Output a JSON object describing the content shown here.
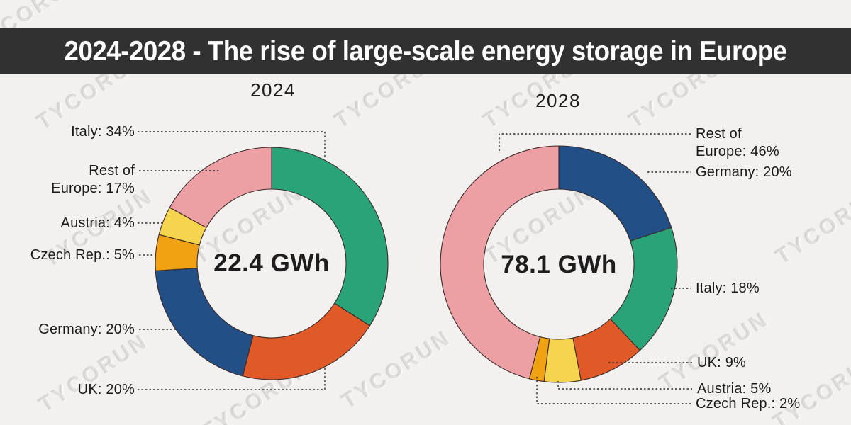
{
  "page_title": "2024-2028 - The rise of large-scale energy storage in Europe",
  "watermark": "TYCORUN",
  "colors": {
    "background": "#f2f1ef",
    "title_bar": "#323131",
    "title_text": "#ffffff",
    "slice_outline": "#3a2928",
    "leader_line": "#2e2e2e",
    "italy": "#2AA379",
    "uk": "#E05A28",
    "germany": "#234F87",
    "czech_rep": "#F0A213",
    "austria": "#F6D44D",
    "rest_of_europe": "#ECA0A4"
  },
  "charts": {
    "left": {
      "year": "2024",
      "center_value": "22.4 GWh",
      "callouts": {
        "italy": "Italy: 34%",
        "rest_line1": "Rest of",
        "rest_line2": "Europe: 17%",
        "austria": "Austria: 4%",
        "czech": "Czech Rep.: 5%",
        "germany": "Germany: 20%",
        "uk": "UK: 20%"
      }
    },
    "right": {
      "year": "2028",
      "center_value": "78.1 GWh",
      "callouts": {
        "rest_line1": "Rest of",
        "rest_line2": "Europe: 46%",
        "germany": "Germany: 20%",
        "italy": "Italy: 18%",
        "uk": "UK: 9%",
        "austria": "Austria: 5%",
        "czech": "Czech Rep.: 2%"
      }
    }
  },
  "chart_data": [
    {
      "type": "pie",
      "subtype": "donut",
      "title": "2024",
      "center_label": "22.4 GWh",
      "total_value": 22.4,
      "unit": "GWh",
      "slice_order": "clockwise-from-top",
      "slices": [
        {
          "label": "Italy",
          "pct": 34,
          "color": "#2AA379"
        },
        {
          "label": "UK",
          "pct": 20,
          "color": "#E05A28"
        },
        {
          "label": "Germany",
          "pct": 20,
          "color": "#234F87"
        },
        {
          "label": "Czech Rep.",
          "pct": 5,
          "color": "#F0A213"
        },
        {
          "label": "Austria",
          "pct": 4,
          "color": "#F6D44D"
        },
        {
          "label": "Rest of Europe",
          "pct": 17,
          "color": "#ECA0A4"
        }
      ]
    },
    {
      "type": "pie",
      "subtype": "donut",
      "title": "2028",
      "center_label": "78.1 GWh",
      "total_value": 78.1,
      "unit": "GWh",
      "slice_order": "clockwise-from-top",
      "slices": [
        {
          "label": "Germany",
          "pct": 20,
          "color": "#234F87"
        },
        {
          "label": "Italy",
          "pct": 18,
          "color": "#2AA379"
        },
        {
          "label": "UK",
          "pct": 9,
          "color": "#E05A28"
        },
        {
          "label": "Austria",
          "pct": 5,
          "color": "#F6D44D"
        },
        {
          "label": "Czech Rep.",
          "pct": 2,
          "color": "#F0A213"
        },
        {
          "label": "Rest of Europe",
          "pct": 46,
          "color": "#ECA0A4"
        }
      ]
    }
  ]
}
